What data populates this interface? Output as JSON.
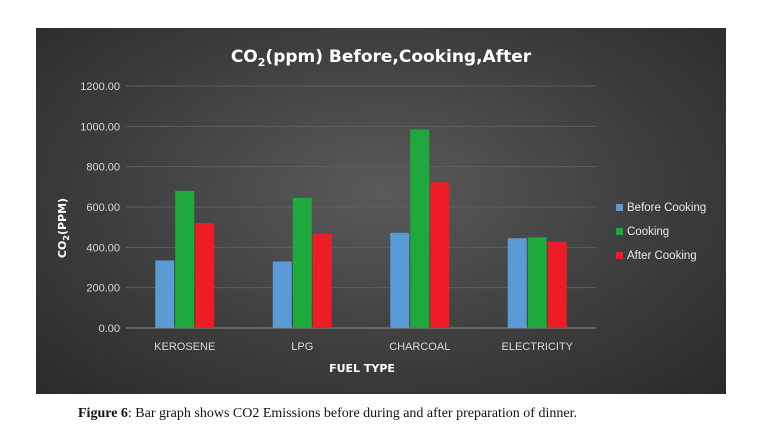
{
  "chart_data": {
    "type": "bar",
    "title_prefix": "CO",
    "title_sub": "2",
    "title_rest": "(ppm)  Before,Cooking,After",
    "xlabel": "FUEL TYPE",
    "ylabel_prefix": "CO",
    "ylabel_sub": "2",
    "ylabel_rest": "(PPM)",
    "categories": [
      "KEROSENE",
      "LPG",
      "CHARCOAL",
      "ELECTRICITY"
    ],
    "ylim": [
      0,
      1200
    ],
    "yticks": [
      "0.00",
      "200.00",
      "400.00",
      "600.00",
      "800.00",
      "1000.00",
      "1200.00"
    ],
    "grid": true,
    "legend_position": "right",
    "series": [
      {
        "name": "Before Cooking",
        "color": "#5b9bd5",
        "values": [
          335,
          330,
          472,
          445
        ]
      },
      {
        "name": "Cooking",
        "color": "#1fa83c",
        "values": [
          680,
          645,
          985,
          450
        ]
      },
      {
        "name": "After Cooking",
        "color": "#ee1c24",
        "values": [
          520,
          468,
          722,
          428
        ]
      }
    ]
  },
  "caption": {
    "label": "Figure 6",
    "text": ": Bar graph shows CO2 Emissions before during and after preparation of dinner."
  }
}
